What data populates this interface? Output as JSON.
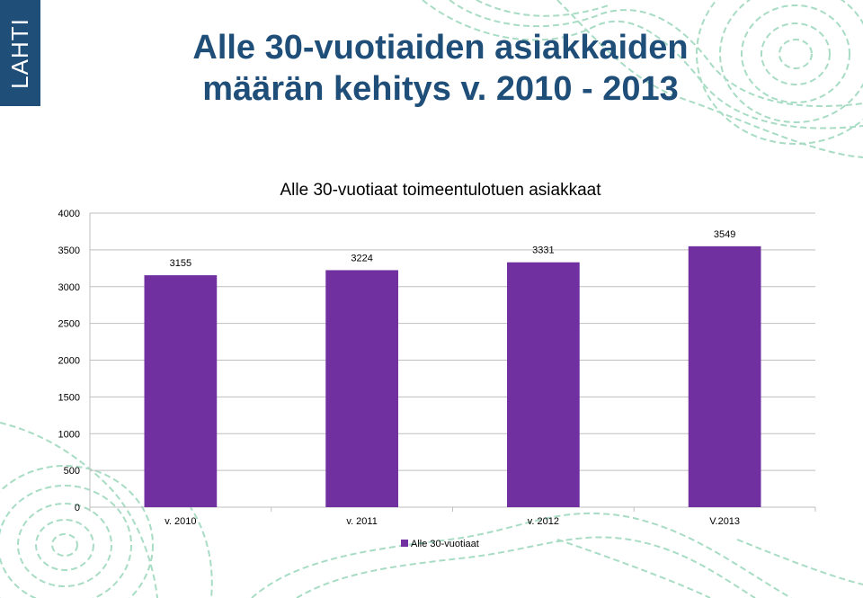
{
  "logo": {
    "text": "LAHTI"
  },
  "slide": {
    "title": "Alle 30-vuotiaiden asiakkaiden määrän kehitys v. 2010 - 2013"
  },
  "colors": {
    "title": "#1f4e79",
    "bar": "#7030a0",
    "decoration": "#a8dcc4"
  },
  "chart_data": {
    "type": "bar",
    "title": "Alle 30-vuotiaat toimeentulotuen asiakkaat",
    "categories": [
      "v. 2010",
      "v. 2011",
      "v. 2012",
      "V.2013"
    ],
    "series": [
      {
        "name": "Alle 30-vuotiaat",
        "values": [
          3155,
          3224,
          3331,
          3549
        ]
      }
    ],
    "y_ticks": [
      0,
      500,
      1000,
      1500,
      2000,
      2500,
      3000,
      3500,
      4000
    ],
    "ylim": [
      0,
      4000
    ],
    "grid": true,
    "data_labels": true,
    "legend_position": "bottom",
    "xlabel": "",
    "ylabel": ""
  }
}
